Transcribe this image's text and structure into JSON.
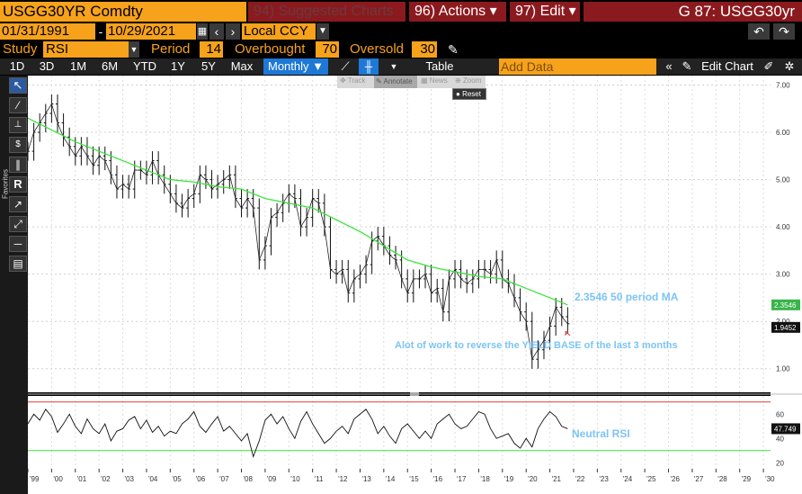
{
  "header": {
    "ticker": "USGG30YR Comdty",
    "suggested": "94) Suggested Charts",
    "actions": "96) Actions",
    "edit": "97) Edit",
    "right_title": "G 87: USGG30yr"
  },
  "range": {
    "start": "01/31/1991",
    "end": "10/29/2021",
    "currency": "Local CCY"
  },
  "study": {
    "label": "Study",
    "name": "RSI",
    "period_label": "Period",
    "period": "14",
    "overbought_label": "Overbought",
    "overbought": "70",
    "oversold_label": "Oversold",
    "oversold": "30"
  },
  "periods": [
    "1D",
    "3D",
    "1M",
    "6M",
    "YTD",
    "1Y",
    "5Y",
    "Max"
  ],
  "frequency": "Monthly ▼",
  "table_label": "Table",
  "add_data_placeholder": "Add Data",
  "edit_chart": "Edit Chart",
  "chart_toolbar": [
    "Track",
    "Annotate",
    "News",
    "Zoom"
  ],
  "reset_label": "Reset",
  "favorites_label": "Favorites",
  "colors": {
    "accent": "#f7a21b",
    "header_red": "#8b1a1f",
    "ma_line": "#39e639",
    "annotation": "#7cc4f5",
    "overbought_line": "#e03b3b",
    "oversold_line": "#39e639"
  },
  "chart_data": [
    {
      "type": "line",
      "series": [
        {
          "x": [
            1999.0,
            1999.25,
            1999.5,
            1999.75,
            2000.0,
            2000.25,
            2000.5,
            2000.75,
            2001.0,
            2001.25,
            2001.5,
            2001.75,
            2002.0,
            2002.25,
            2002.5,
            2002.75,
            2003.0,
            2003.25,
            2003.5,
            2003.75,
            2004.0,
            2004.25,
            2004.5,
            2004.75,
            2005.0,
            2005.25,
            2005.5,
            2005.75,
            2006.0,
            2006.25,
            2006.5,
            2006.75,
            2007.0,
            2007.25,
            2007.5,
            2007.75,
            2008.0,
            2008.25,
            2008.5,
            2008.75,
            2009.0,
            2009.25,
            2009.5,
            2009.75,
            2010.0,
            2010.25,
            2010.5,
            2010.75,
            2011.0,
            2011.25,
            2011.5,
            2011.75,
            2012.0,
            2012.25,
            2012.5,
            2012.75,
            2013.0,
            2013.25,
            2013.5,
            2013.75,
            2014.0,
            2014.25,
            2014.5,
            2014.75,
            2015.0,
            2015.25,
            2015.5,
            2015.75,
            2016.0,
            2016.25,
            2016.5,
            2016.75,
            2017.0,
            2017.25,
            2017.5,
            2017.75,
            2018.0,
            2018.25,
            2018.5,
            2018.75,
            2019.0,
            2019.25,
            2019.5,
            2019.75,
            2020.0,
            2020.25,
            2020.5,
            2020.75,
            2021.0,
            2021.25,
            2021.5,
            2021.75
          ],
          "values": [
            5.6,
            6.0,
            6.2,
            6.4,
            6.6,
            6.2,
            5.9,
            5.7,
            5.5,
            5.7,
            5.5,
            5.3,
            5.5,
            5.4,
            5.1,
            4.8,
            4.9,
            4.8,
            5.2,
            5.2,
            5.1,
            5.4,
            5.1,
            4.9,
            4.7,
            4.5,
            4.4,
            4.6,
            4.7,
            5.1,
            5.0,
            4.8,
            4.9,
            5.0,
            5.1,
            4.6,
            4.4,
            4.6,
            4.4,
            3.3,
            3.6,
            4.2,
            4.3,
            4.5,
            4.7,
            4.6,
            4.0,
            4.2,
            4.6,
            4.5,
            4.0,
            3.1,
            3.0,
            3.1,
            2.6,
            2.9,
            3.0,
            3.2,
            3.7,
            3.8,
            3.6,
            3.4,
            3.3,
            2.9,
            2.6,
            2.9,
            2.9,
            3.0,
            2.6,
            2.7,
            2.2,
            2.9,
            3.1,
            2.9,
            2.8,
            2.9,
            3.1,
            3.1,
            3.0,
            3.3,
            2.9,
            2.8,
            2.5,
            2.2,
            2.0,
            1.2,
            1.4,
            1.6,
            1.9,
            2.3,
            2.1,
            1.95
          ]
        },
        {
          "name": "2.3546 50 period MA",
          "x": [
            1999.0,
            2000.0,
            2001.0,
            2002.0,
            2003.0,
            2004.0,
            2005.0,
            2006.0,
            2007.0,
            2008.0,
            2009.0,
            2010.0,
            2011.0,
            2012.0,
            2013.0,
            2014.0,
            2015.0,
            2016.0,
            2017.0,
            2018.0,
            2019.0,
            2020.0,
            2021.0,
            2021.75
          ],
          "values": [
            6.3,
            6.05,
            5.8,
            5.6,
            5.4,
            5.2,
            5.0,
            4.95,
            4.85,
            4.8,
            4.6,
            4.5,
            4.4,
            4.15,
            3.9,
            3.6,
            3.3,
            3.15,
            3.05,
            2.95,
            2.9,
            2.7,
            2.5,
            2.35
          ]
        }
      ],
      "ylim": [
        0.5,
        7.2
      ],
      "yticks": [
        "1.00",
        "2.00",
        "3.00",
        "4.00",
        "5.00",
        "6.00",
        "7.00"
      ],
      "last_value_labels": [
        "2.3546",
        "1.9452"
      ],
      "annotations": [
        "2.3546 50 period MA",
        "Alot of work to reverse the YIELD BASE of the last 3 months"
      ]
    },
    {
      "type": "line",
      "series": [
        {
          "x": [
            1999.0,
            1999.25,
            1999.5,
            1999.75,
            2000.0,
            2000.25,
            2000.5,
            2000.75,
            2001.0,
            2001.25,
            2001.5,
            2001.75,
            2002.0,
            2002.25,
            2002.5,
            2002.75,
            2003.0,
            2003.25,
            2003.5,
            2003.75,
            2004.0,
            2004.25,
            2004.5,
            2004.75,
            2005.0,
            2005.25,
            2005.5,
            2005.75,
            2006.0,
            2006.25,
            2006.5,
            2006.75,
            2007.0,
            2007.25,
            2007.5,
            2007.75,
            2008.0,
            2008.25,
            2008.5,
            2008.75,
            2009.0,
            2009.25,
            2009.5,
            2009.75,
            2010.0,
            2010.25,
            2010.5,
            2010.75,
            2011.0,
            2011.25,
            2011.5,
            2011.75,
            2012.0,
            2012.25,
            2012.5,
            2012.75,
            2013.0,
            2013.25,
            2013.5,
            2013.75,
            2014.0,
            2014.25,
            2014.5,
            2014.75,
            2015.0,
            2015.25,
            2015.5,
            2015.75,
            2016.0,
            2016.25,
            2016.5,
            2016.75,
            2017.0,
            2017.25,
            2017.5,
            2017.75,
            2018.0,
            2018.25,
            2018.5,
            2018.75,
            2019.0,
            2019.25,
            2019.5,
            2019.75,
            2020.0,
            2020.25,
            2020.5,
            2020.75,
            2021.0,
            2021.25,
            2021.5,
            2021.75
          ],
          "values": [
            52,
            60,
            55,
            64,
            58,
            45,
            52,
            60,
            50,
            44,
            56,
            48,
            44,
            52,
            38,
            46,
            48,
            55,
            58,
            48,
            55,
            45,
            50,
            42,
            46,
            44,
            52,
            56,
            62,
            50,
            45,
            52,
            58,
            46,
            50,
            44,
            38,
            44,
            25,
            38,
            55,
            60,
            52,
            58,
            48,
            40,
            54,
            62,
            52,
            44,
            36,
            40,
            46,
            50,
            44,
            56,
            60,
            64,
            56,
            44,
            50,
            42,
            36,
            48,
            52,
            46,
            40,
            46,
            40,
            52,
            56,
            60,
            52,
            48,
            50,
            56,
            62,
            60,
            48,
            40,
            42,
            44,
            36,
            32,
            40,
            33,
            48,
            56,
            62,
            58,
            50,
            48
          ]
        }
      ],
      "ylim": [
        15,
        75
      ],
      "yticks": [
        "20",
        "40",
        "60"
      ],
      "overbought": 70,
      "oversold": 30,
      "last_value_label": "47.749",
      "annotation": "Neutral RSI",
      "xticks": [
        "'99",
        "'00",
        "'01",
        "'02",
        "'03",
        "'04",
        "'05",
        "'06",
        "'07",
        "'08",
        "'09",
        "'10",
        "'11",
        "'12",
        "'13",
        "'14",
        "'15",
        "'16",
        "'17",
        "'18",
        "'19",
        "'20",
        "'21",
        "'22",
        "'23",
        "'24",
        "'25",
        "'26",
        "'27",
        "'28",
        "'29",
        "'30"
      ]
    }
  ]
}
